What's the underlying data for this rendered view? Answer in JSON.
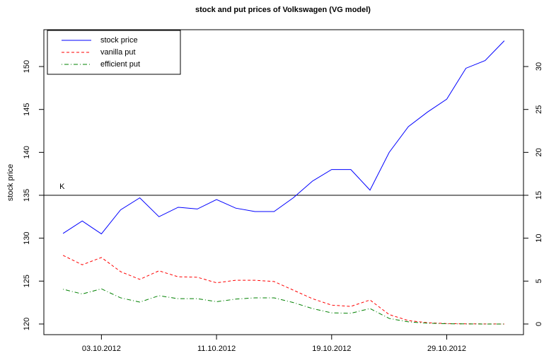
{
  "chart_data": {
    "type": "line",
    "title": "stock and put prices of Volkswagen (VG model)",
    "y_label": "stock price",
    "categories": [
      null,
      null,
      "03.10.2012",
      null,
      null,
      null,
      null,
      null,
      "11.10.2012",
      null,
      null,
      null,
      null,
      null,
      "19.10.2012",
      null,
      null,
      null,
      null,
      null,
      "29.10.2012",
      null,
      null,
      null
    ],
    "ylim": [
      118.76,
      154.29
    ],
    "yticks": [
      120,
      125,
      130,
      135,
      140,
      145,
      150
    ],
    "y2lim": [
      -1.24,
      34.29
    ],
    "y2ticks": [
      0,
      5,
      10,
      15,
      20,
      25,
      30
    ],
    "hline": {
      "value": 135,
      "label": "K"
    },
    "legend": "top-left",
    "series": [
      {
        "name": "stock price",
        "color": "#0000ff",
        "dash": "solid",
        "values": [
          130.55,
          132.0,
          130.5,
          133.3,
          134.7,
          132.5,
          133.6,
          133.4,
          134.5,
          133.5,
          133.1,
          133.1,
          134.7,
          136.65,
          138.0,
          138.0,
          135.6,
          140.0,
          143.0,
          144.7,
          146.2,
          149.8,
          150.7,
          153.0
        ]
      },
      {
        "name": "vanilla put",
        "color": "#ff0000",
        "dash": "dashed",
        "axis": "y2",
        "values": [
          8.0,
          6.9,
          7.75,
          6.1,
          5.2,
          6.2,
          5.5,
          5.45,
          4.8,
          5.1,
          5.1,
          4.95,
          3.95,
          2.95,
          2.2,
          2.05,
          2.8,
          1.1,
          0.4,
          0.15,
          0.05,
          0.02,
          0.01,
          0.0
        ]
      },
      {
        "name": "efficient put",
        "color": "#008000",
        "dash": "dotdash",
        "axis": "y2",
        "values": [
          4.05,
          3.5,
          4.1,
          3.05,
          2.55,
          3.3,
          2.95,
          2.95,
          2.6,
          2.9,
          3.05,
          3.05,
          2.5,
          1.8,
          1.3,
          1.25,
          1.8,
          0.65,
          0.25,
          0.1,
          0.03,
          0.01,
          0.0,
          0.0
        ]
      }
    ]
  }
}
